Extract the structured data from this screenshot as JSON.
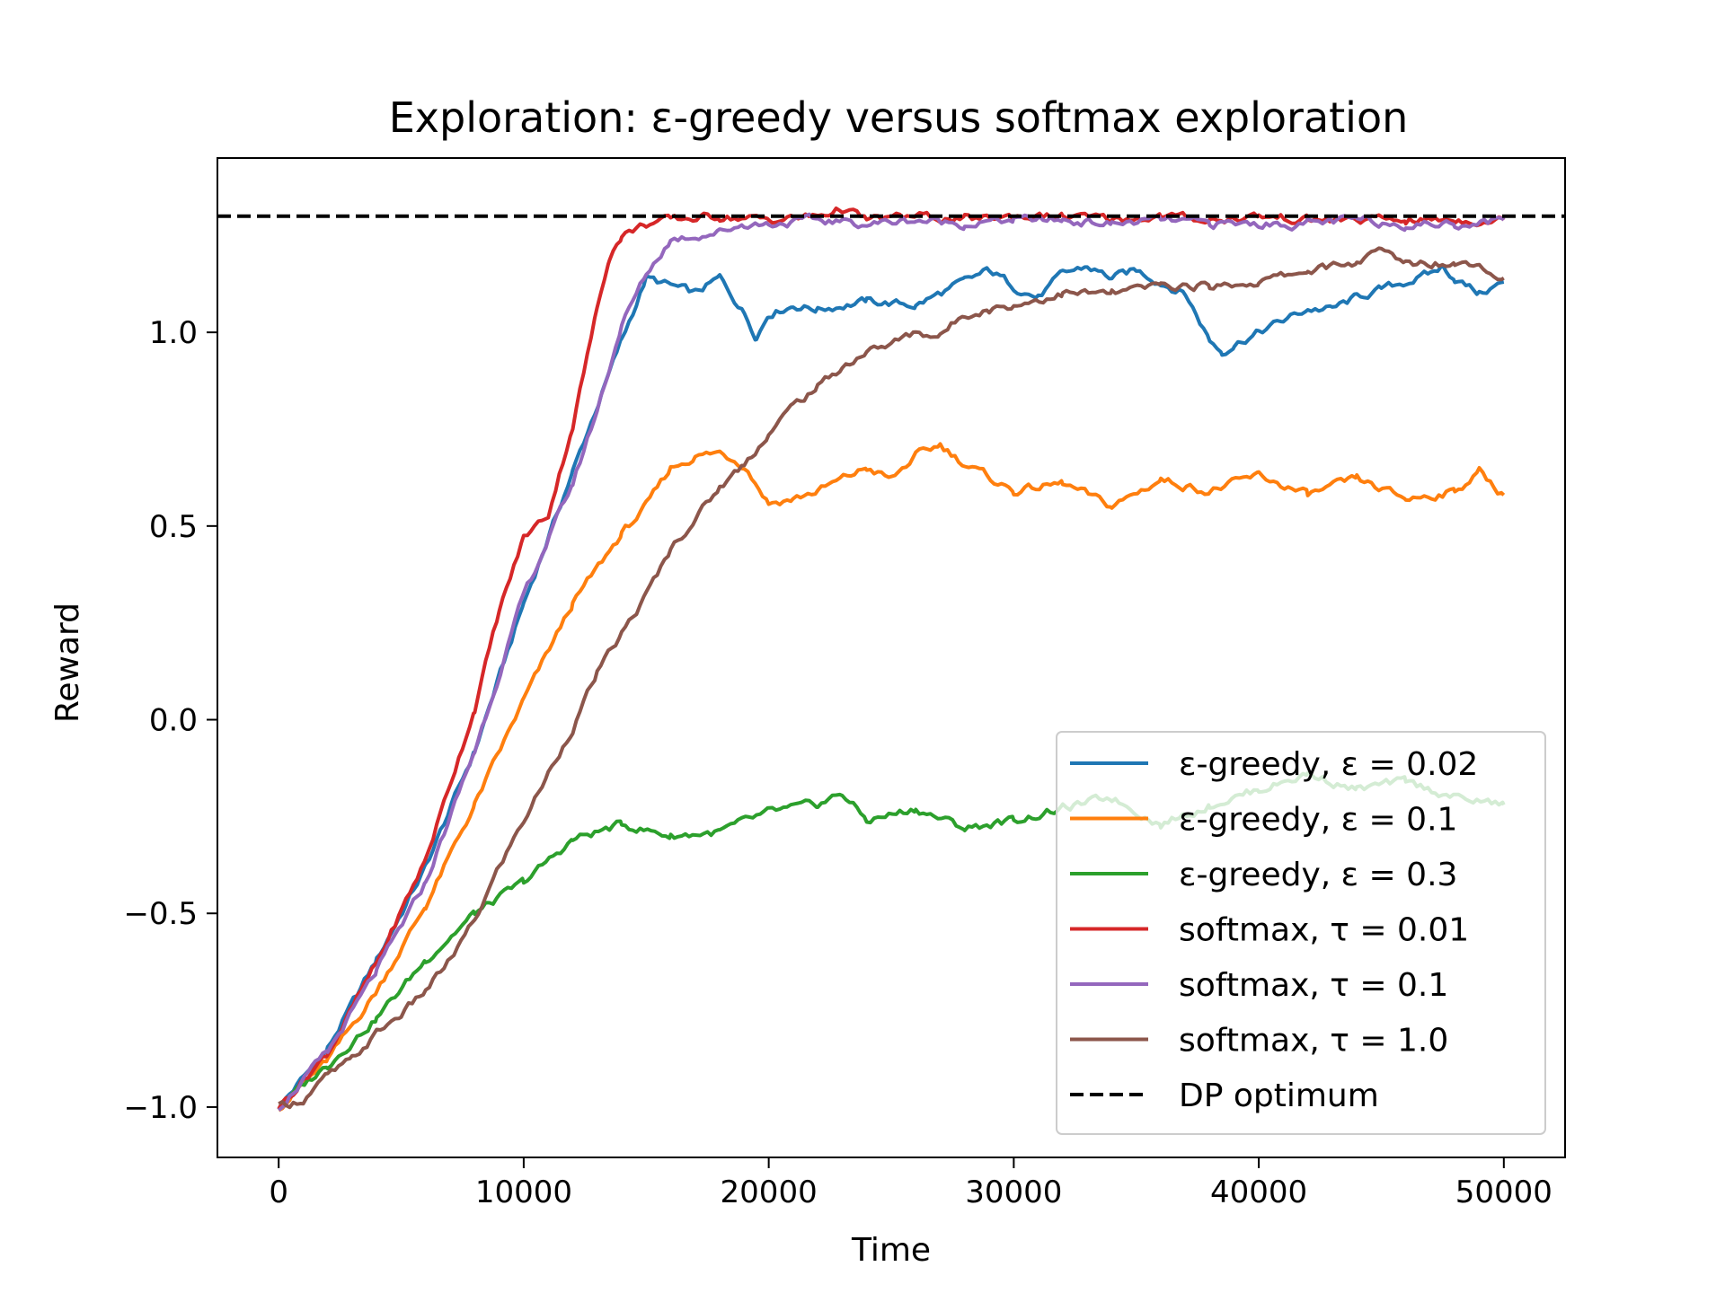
{
  "chart_data": {
    "type": "line",
    "title": "Exploration: ε-greedy versus softmax exploration",
    "xlabel": "Time",
    "ylabel": "Reward",
    "xlim": [
      -2500,
      52500
    ],
    "ylim": [
      -1.13,
      1.45
    ],
    "xticks": [
      0,
      10000,
      20000,
      30000,
      40000,
      50000
    ],
    "xtick_labels": [
      "0",
      "10000",
      "20000",
      "30000",
      "40000",
      "50000"
    ],
    "yticks": [
      -1.0,
      -0.5,
      0.0,
      0.5,
      1.0
    ],
    "ytick_labels": [
      "−1.0",
      "−0.5",
      "0.0",
      "0.5",
      "1.0"
    ],
    "grid": false,
    "legend_position": "lower-right",
    "series": [
      {
        "name": "ε-greedy, ε = 0.02",
        "color": "#1f77b4",
        "style": "solid",
        "x": [
          0,
          2000,
          4000,
          6000,
          8000,
          10000,
          12000,
          14000,
          15000,
          16000,
          17000,
          18000,
          19000,
          19500,
          20000,
          21000,
          22000,
          24000,
          26000,
          28000,
          29000,
          30000,
          31000,
          32000,
          33000,
          34000,
          35000,
          36000,
          37000,
          38000,
          38500,
          39000,
          40000,
          41000,
          42000,
          43000,
          44000,
          45000,
          46000,
          47000,
          47500,
          48000,
          49000,
          50000
        ],
        "y": [
          -1.0,
          -0.85,
          -0.62,
          -0.38,
          -0.08,
          0.3,
          0.64,
          0.98,
          1.14,
          1.12,
          1.1,
          1.14,
          1.05,
          0.99,
          1.05,
          1.07,
          1.06,
          1.08,
          1.07,
          1.13,
          1.16,
          1.12,
          1.09,
          1.15,
          1.17,
          1.14,
          1.16,
          1.13,
          1.1,
          0.98,
          0.95,
          0.97,
          1.0,
          1.03,
          1.06,
          1.06,
          1.09,
          1.11,
          1.13,
          1.15,
          1.17,
          1.14,
          1.1,
          1.13
        ]
      },
      {
        "name": "ε-greedy, ε = 0.1",
        "color": "#ff7f0e",
        "style": "solid",
        "x": [
          0,
          2000,
          4000,
          6000,
          8000,
          10000,
          12000,
          14000,
          15000,
          16000,
          17000,
          18000,
          19000,
          20000,
          21000,
          22000,
          24000,
          25000,
          26000,
          27000,
          28000,
          30000,
          32000,
          34000,
          36000,
          38000,
          40000,
          42000,
          44000,
          46000,
          48000,
          49000,
          50000
        ],
        "y": [
          -1.0,
          -0.88,
          -0.7,
          -0.48,
          -0.22,
          0.05,
          0.3,
          0.48,
          0.55,
          0.65,
          0.68,
          0.69,
          0.66,
          0.56,
          0.57,
          0.59,
          0.65,
          0.62,
          0.68,
          0.71,
          0.66,
          0.59,
          0.61,
          0.55,
          0.62,
          0.59,
          0.63,
          0.58,
          0.62,
          0.57,
          0.59,
          0.64,
          0.58
        ]
      },
      {
        "name": "ε-greedy, ε = 0.3",
        "color": "#2ca02c",
        "style": "solid",
        "x": [
          0,
          2000,
          4000,
          6000,
          8000,
          10000,
          12000,
          14000,
          16000,
          18000,
          20000,
          22000,
          23000,
          24000,
          26000,
          28000,
          30000,
          32000,
          34000,
          36000,
          38000,
          40000,
          42000,
          44000,
          46000,
          48000,
          50000
        ],
        "y": [
          -1.0,
          -0.89,
          -0.77,
          -0.62,
          -0.5,
          -0.42,
          -0.31,
          -0.27,
          -0.3,
          -0.29,
          -0.24,
          -0.22,
          -0.19,
          -0.26,
          -0.23,
          -0.28,
          -0.26,
          -0.23,
          -0.2,
          -0.27,
          -0.22,
          -0.18,
          -0.14,
          -0.18,
          -0.16,
          -0.2,
          -0.22
        ]
      },
      {
        "name": "softmax, τ = 0.01",
        "color": "#d62728",
        "style": "solid",
        "x": [
          0,
          2000,
          4000,
          6000,
          8000,
          9000,
          10000,
          11000,
          12000,
          13000,
          13500,
          14000,
          15000,
          16000,
          18000,
          20000,
          22000,
          23000,
          24000,
          26000,
          28000,
          30000,
          32000,
          34000,
          36000,
          38000,
          40000,
          42000,
          44000,
          46000,
          48000,
          50000
        ],
        "y": [
          -1.0,
          -0.86,
          -0.63,
          -0.36,
          0.03,
          0.28,
          0.47,
          0.53,
          0.76,
          1.06,
          1.2,
          1.25,
          1.28,
          1.29,
          1.3,
          1.29,
          1.3,
          1.32,
          1.29,
          1.3,
          1.29,
          1.3,
          1.3,
          1.29,
          1.3,
          1.29,
          1.3,
          1.29,
          1.29,
          1.29,
          1.29,
          1.29
        ]
      },
      {
        "name": "softmax, τ = 0.1",
        "color": "#9467bd",
        "style": "solid",
        "x": [
          0,
          2000,
          4000,
          6000,
          8000,
          10000,
          12000,
          13000,
          14000,
          15000,
          16000,
          17000,
          18000,
          19000,
          20000,
          22000,
          24000,
          26000,
          28000,
          30000,
          32000,
          34000,
          36000,
          38000,
          40000,
          42000,
          44000,
          46000,
          48000,
          50000
        ],
        "y": [
          -1.0,
          -0.86,
          -0.65,
          -0.42,
          -0.08,
          0.32,
          0.61,
          0.8,
          1.02,
          1.15,
          1.24,
          1.25,
          1.26,
          1.28,
          1.28,
          1.29,
          1.28,
          1.29,
          1.28,
          1.29,
          1.29,
          1.28,
          1.29,
          1.28,
          1.28,
          1.28,
          1.29,
          1.28,
          1.28,
          1.29
        ]
      },
      {
        "name": "softmax, τ = 1.0",
        "color": "#8c564b",
        "style": "solid",
        "x": [
          0,
          1000,
          2000,
          3000,
          4000,
          5000,
          6000,
          7000,
          8000,
          9000,
          10000,
          11000,
          12000,
          13000,
          14000,
          15000,
          16000,
          17000,
          18000,
          19000,
          20000,
          21000,
          22000,
          23000,
          24000,
          25000,
          26000,
          27000,
          28000,
          29000,
          30000,
          32000,
          34000,
          36000,
          38000,
          40000,
          42000,
          44000,
          45000,
          46000,
          48000,
          49000,
          50000
        ],
        "y": [
          -1.0,
          -0.98,
          -0.92,
          -0.88,
          -0.81,
          -0.76,
          -0.7,
          -0.62,
          -0.52,
          -0.38,
          -0.26,
          -0.14,
          -0.02,
          0.12,
          0.22,
          0.32,
          0.44,
          0.52,
          0.6,
          0.66,
          0.74,
          0.81,
          0.86,
          0.91,
          0.95,
          0.97,
          1.0,
          0.99,
          1.05,
          1.06,
          1.07,
          1.1,
          1.1,
          1.12,
          1.12,
          1.13,
          1.16,
          1.18,
          1.21,
          1.18,
          1.18,
          1.18,
          1.14
        ]
      },
      {
        "name": "DP optimum",
        "color": "#000000",
        "style": "dashed",
        "x": [
          -2500,
          52500
        ],
        "y": [
          1.3,
          1.3
        ]
      }
    ]
  }
}
